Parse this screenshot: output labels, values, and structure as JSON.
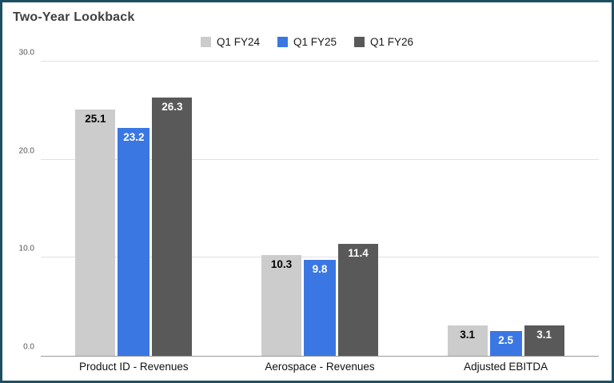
{
  "chart_data": {
    "type": "bar",
    "title": "Two-Year Lookback",
    "categories": [
      "Product ID - Revenues",
      "Aerospace - Revenues",
      "Adjusted EBITDA"
    ],
    "series": [
      {
        "name": "Q1 FY24",
        "color": "#cccccc",
        "label_color": "#000000",
        "values": [
          25.1,
          10.3,
          3.1
        ],
        "data_labels": [
          "25.1",
          "10.3",
          "3.1"
        ]
      },
      {
        "name": "Q1 FY25",
        "color": "#3b77e3",
        "label_color": "#ffffff",
        "values": [
          23.2,
          9.8,
          2.5
        ],
        "data_labels": [
          "23.2",
          "9.8",
          "2.5"
        ]
      },
      {
        "name": "Q1 FY26",
        "color": "#595959",
        "label_color": "#ffffff",
        "values": [
          26.3,
          11.4,
          3.1
        ],
        "data_labels": [
          "26.3",
          "11.4",
          "3.1"
        ]
      }
    ],
    "ylim": [
      0,
      30
    ],
    "yticks": [
      0,
      10,
      20,
      30
    ],
    "ytick_labels": [
      "0.0",
      "10.0",
      "20.0",
      "30.0"
    ],
    "grid": true,
    "legend_position": "top",
    "xlabel": "",
    "ylabel": ""
  },
  "frame": {
    "border_color": "#1d4f63",
    "background_color": "#ffffff"
  }
}
